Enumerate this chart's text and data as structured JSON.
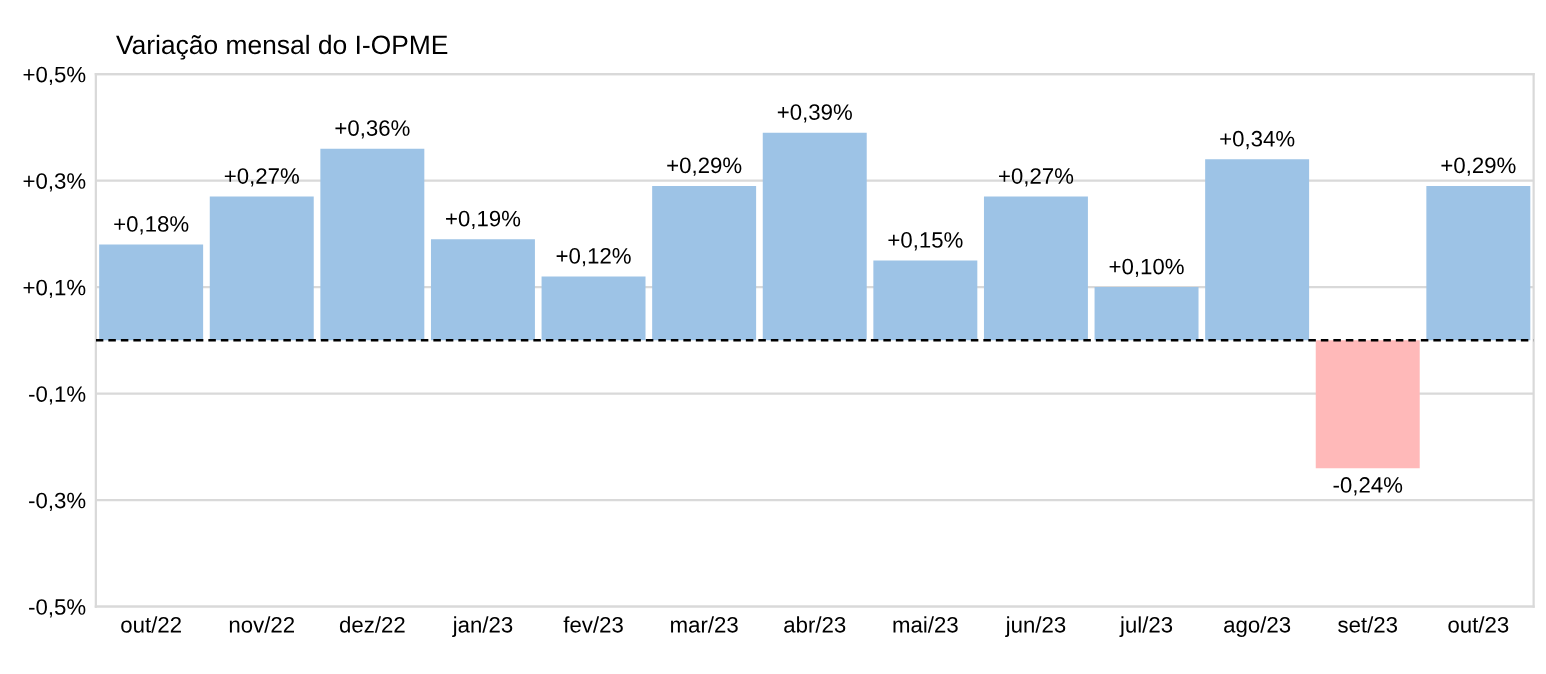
{
  "chart_data": {
    "type": "bar",
    "title": "Variação mensal do I-OPME",
    "categories": [
      "out/22",
      "nov/22",
      "dez/22",
      "jan/23",
      "fev/23",
      "mar/23",
      "abr/23",
      "mai/23",
      "jun/23",
      "jul/23",
      "ago/23",
      "set/23",
      "out/23"
    ],
    "values": [
      0.18,
      0.27,
      0.36,
      0.19,
      0.12,
      0.29,
      0.39,
      0.15,
      0.27,
      0.1,
      0.34,
      -0.24,
      0.29
    ],
    "value_labels": [
      "+0,18%",
      "+0,27%",
      "+0,36%",
      "+0,19%",
      "+0,12%",
      "+0,29%",
      "+0,39%",
      "+0,15%",
      "+0,27%",
      "+0,10%",
      "+0,34%",
      "-0,24%",
      "+0,29%"
    ],
    "colors": [
      "#9dc3e6",
      "#9dc3e6",
      "#9dc3e6",
      "#9dc3e6",
      "#9dc3e6",
      "#9dc3e6",
      "#9dc3e6",
      "#9dc3e6",
      "#9dc3e6",
      "#9dc3e6",
      "#9dc3e6",
      "#ffb9b9",
      "#9dc3e6"
    ],
    "ylim": [
      -0.5,
      0.5
    ],
    "yticks": [
      {
        "value": 0.5,
        "label": "+0,5%"
      },
      {
        "value": 0.3,
        "label": "+0,3%"
      },
      {
        "value": 0.1,
        "label": "+0,1%"
      },
      {
        "value": -0.1,
        "label": "-0,1%"
      },
      {
        "value": -0.3,
        "label": "-0,3%"
      },
      {
        "value": -0.5,
        "label": "-0,5%"
      }
    ],
    "ref_lines": [
      {
        "axis": "y",
        "value": 0,
        "label": null,
        "color": "#000000",
        "line_style": "dashed"
      }
    ],
    "grid": "y",
    "legend": false
  }
}
